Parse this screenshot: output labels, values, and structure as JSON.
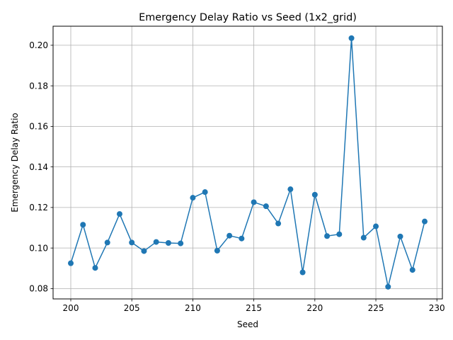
{
  "chart_data": {
    "type": "line",
    "title": "Emergency Delay Ratio vs Seed (1x2_grid)",
    "xlabel": "Seed",
    "ylabel": "Emergency Delay Ratio",
    "xlim": [
      198.55,
      230.45
    ],
    "ylim": [
      0.0749,
      0.2094
    ],
    "xticks": [
      200,
      205,
      210,
      215,
      220,
      225,
      230
    ],
    "yticks": [
      0.08,
      0.1,
      0.12,
      0.14,
      0.16,
      0.18,
      0.2
    ],
    "ytick_labels": [
      "0.08",
      "0.10",
      "0.12",
      "0.14",
      "0.16",
      "0.18",
      "0.20"
    ],
    "grid": true,
    "marker": "circle",
    "series": [
      {
        "color": "#1f77b4",
        "x": [
          200,
          201,
          202,
          203,
          204,
          205,
          206,
          207,
          208,
          209,
          210,
          211,
          212,
          213,
          214,
          215,
          216,
          217,
          218,
          219,
          220,
          221,
          222,
          223,
          224,
          225,
          226,
          227,
          228,
          229
        ],
        "y": [
          0.0925,
          0.1115,
          0.0902,
          0.1027,
          0.1168,
          0.1027,
          0.0985,
          0.103,
          0.1025,
          0.1023,
          0.1248,
          0.1276,
          0.0987,
          0.1061,
          0.1047,
          0.1226,
          0.1206,
          0.1121,
          0.129,
          0.088,
          0.1263,
          0.1059,
          0.1068,
          0.2035,
          0.1051,
          0.1107,
          0.0809,
          0.1057,
          0.0892,
          0.1131
        ]
      }
    ]
  }
}
